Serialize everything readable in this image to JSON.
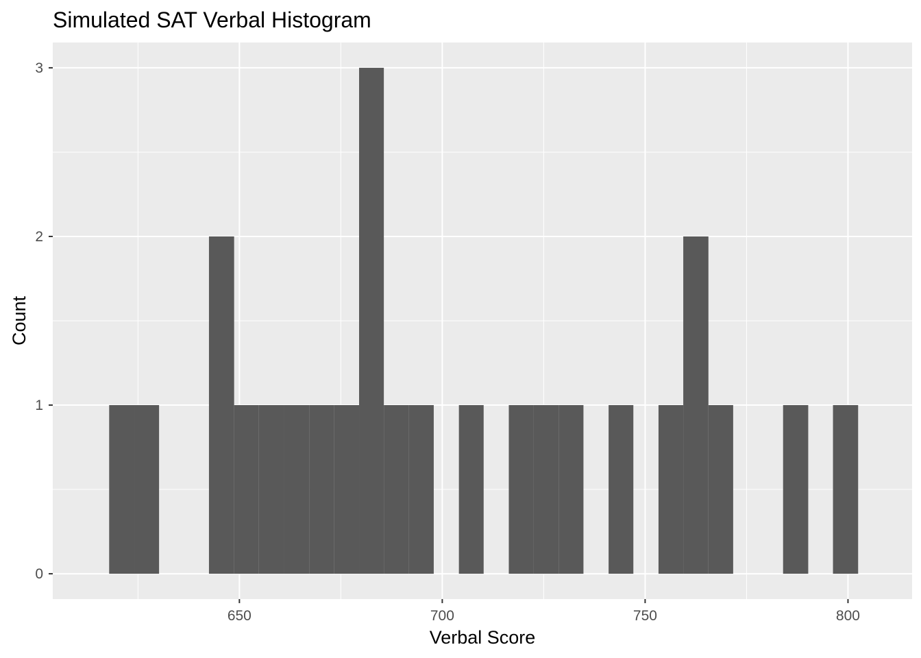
{
  "chart_data": {
    "type": "bar",
    "title": "Simulated SAT Verbal Histogram",
    "xlabel": "Verbal Score",
    "ylabel": "Count",
    "bin_width": 6.16,
    "bins": [
      {
        "x_start": 617.9,
        "x_end": 624.1,
        "count": 1
      },
      {
        "x_start": 624.1,
        "x_end": 630.2,
        "count": 1
      },
      {
        "x_start": 630.2,
        "x_end": 636.4,
        "count": 0
      },
      {
        "x_start": 636.4,
        "x_end": 642.5,
        "count": 0
      },
      {
        "x_start": 642.5,
        "x_end": 648.7,
        "count": 2
      },
      {
        "x_start": 648.7,
        "x_end": 654.8,
        "count": 1
      },
      {
        "x_start": 654.8,
        "x_end": 661.0,
        "count": 1
      },
      {
        "x_start": 661.0,
        "x_end": 667.2,
        "count": 1
      },
      {
        "x_start": 667.2,
        "x_end": 673.3,
        "count": 1
      },
      {
        "x_start": 673.3,
        "x_end": 679.5,
        "count": 1
      },
      {
        "x_start": 679.5,
        "x_end": 685.6,
        "count": 3
      },
      {
        "x_start": 685.6,
        "x_end": 691.8,
        "count": 1
      },
      {
        "x_start": 691.8,
        "x_end": 697.9,
        "count": 1
      },
      {
        "x_start": 697.9,
        "x_end": 704.1,
        "count": 0
      },
      {
        "x_start": 704.1,
        "x_end": 710.2,
        "count": 1
      },
      {
        "x_start": 710.2,
        "x_end": 716.4,
        "count": 0
      },
      {
        "x_start": 716.4,
        "x_end": 722.5,
        "count": 1
      },
      {
        "x_start": 722.5,
        "x_end": 728.7,
        "count": 1
      },
      {
        "x_start": 728.7,
        "x_end": 734.8,
        "count": 1
      },
      {
        "x_start": 734.8,
        "x_end": 741.0,
        "count": 0
      },
      {
        "x_start": 741.0,
        "x_end": 747.1,
        "count": 1
      },
      {
        "x_start": 747.1,
        "x_end": 753.3,
        "count": 0
      },
      {
        "x_start": 753.3,
        "x_end": 759.4,
        "count": 1
      },
      {
        "x_start": 759.4,
        "x_end": 765.6,
        "count": 2
      },
      {
        "x_start": 765.6,
        "x_end": 771.7,
        "count": 1
      },
      {
        "x_start": 771.7,
        "x_end": 777.9,
        "count": 0
      },
      {
        "x_start": 777.9,
        "x_end": 784.0,
        "count": 0
      },
      {
        "x_start": 784.0,
        "x_end": 790.2,
        "count": 1
      },
      {
        "x_start": 790.2,
        "x_end": 796.3,
        "count": 0
      },
      {
        "x_start": 796.3,
        "x_end": 802.5,
        "count": 1
      }
    ],
    "xlim": [
      604.0,
      815.8
    ],
    "ylim": [
      -0.15,
      3.15
    ],
    "x_ticks": [
      650,
      700,
      750,
      800
    ],
    "x_minor_ticks": [
      625,
      675,
      725,
      775
    ],
    "y_ticks": [
      0,
      1,
      2,
      3
    ],
    "y_minor_ticks": [
      0.5,
      1.5,
      2.5
    ],
    "grid": true,
    "legend": "none",
    "colors": {
      "bar": "#595959",
      "panel": "#ebebeb",
      "grid": "#ffffff",
      "tick_text": "#4d4d4d",
      "tick_mark": "#333333"
    }
  }
}
